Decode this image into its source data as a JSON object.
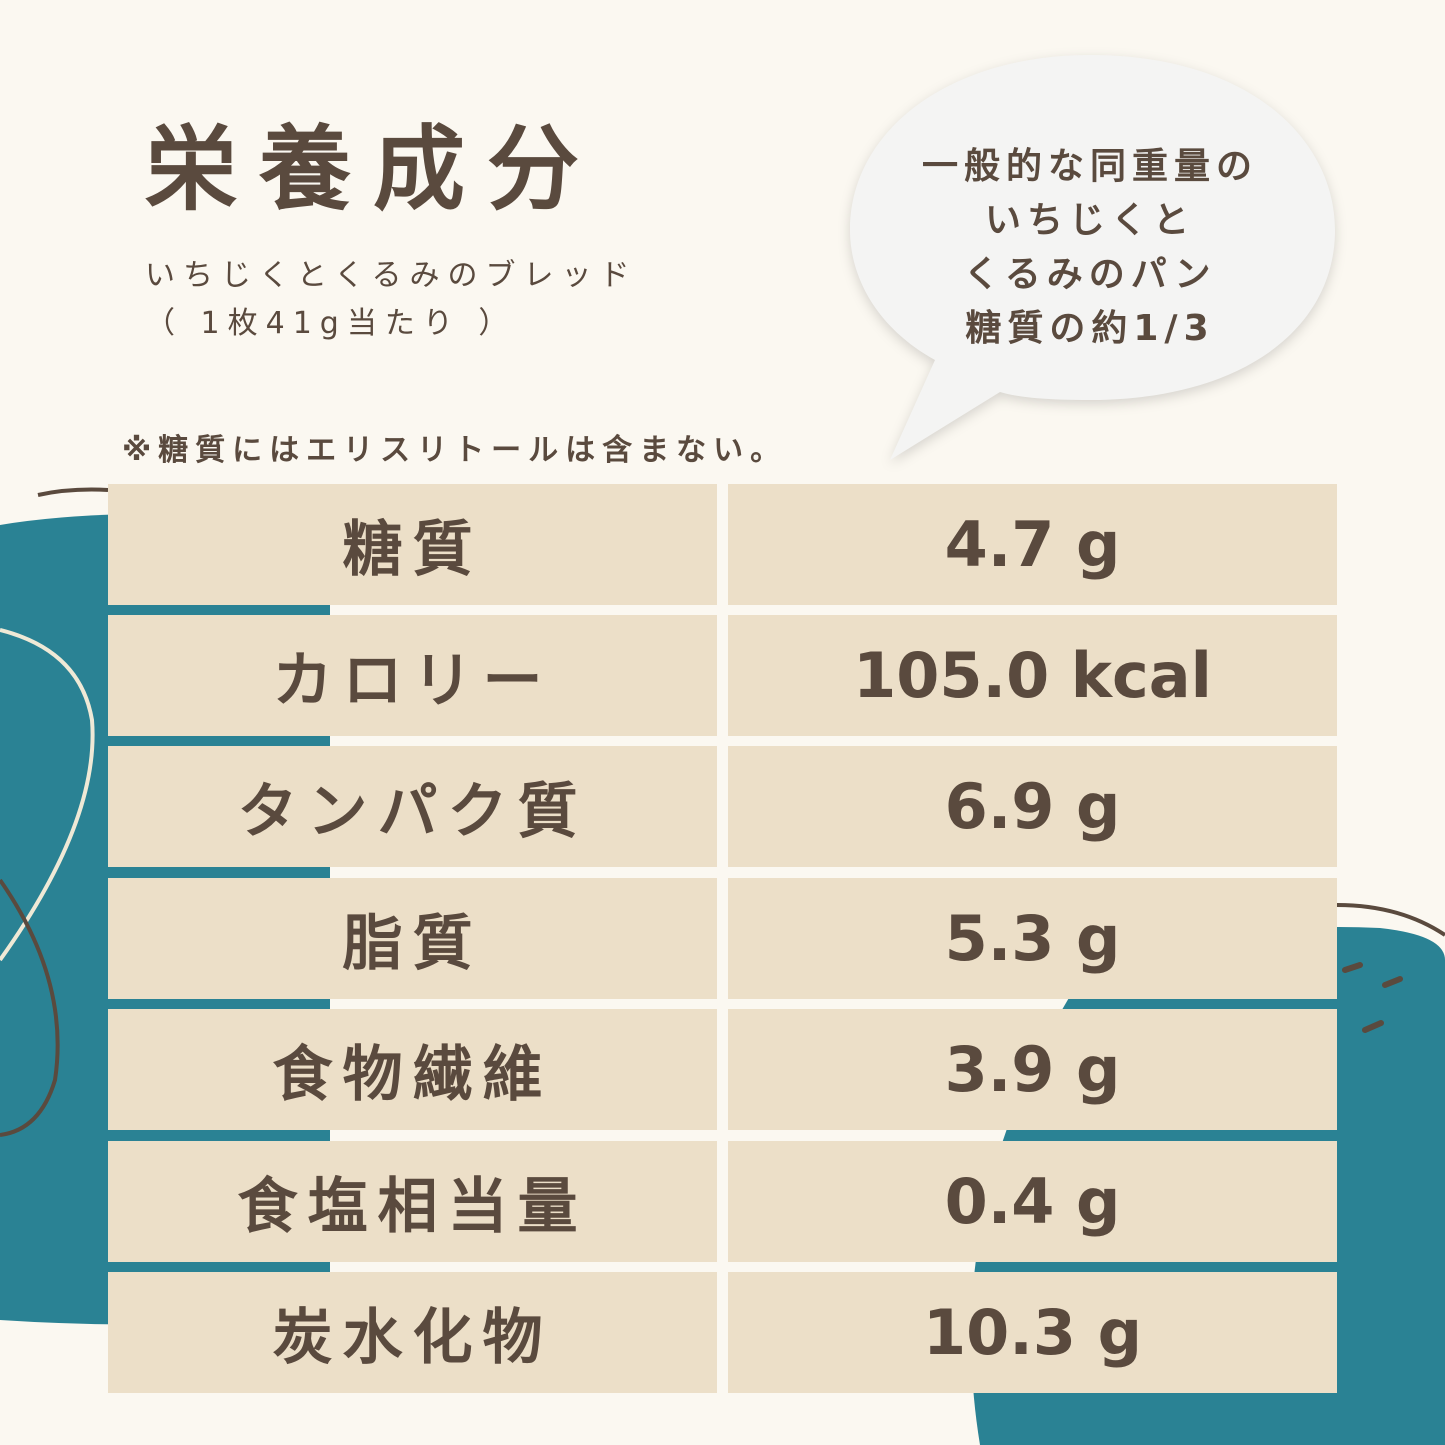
{
  "title": "栄養成分",
  "product": "いちじくとくるみのブレッド",
  "serving": "（ 1枚41g当たり ）",
  "note": "※糖質にはエリスリトールは含まない。",
  "bubble": {
    "lines": [
      "一般的な同重量の",
      "いちじくと",
      "くるみのパン",
      "糖質の約1/3"
    ]
  },
  "colors": {
    "background": "#fbf8f1",
    "teal": "#2a8294",
    "cell": "#ecdfc8",
    "text": "#5a4a3e"
  },
  "rows": [
    {
      "label": "糖質",
      "value": "4.7 g"
    },
    {
      "label": "カロリー",
      "value": "105.0 kcal"
    },
    {
      "label": "タンパク質",
      "value": "6.9 g"
    },
    {
      "label": "脂質",
      "value": "5.3 g"
    },
    {
      "label": "食物繊維",
      "value": "3.9 g"
    },
    {
      "label": "食塩相当量",
      "value": "0.4 g"
    },
    {
      "label": "炭水化物",
      "value": "10.3 g"
    }
  ]
}
